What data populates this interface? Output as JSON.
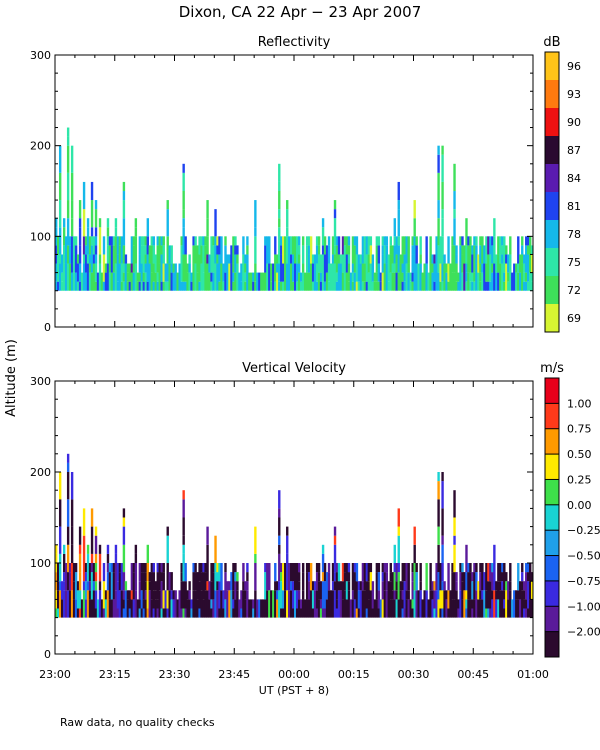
{
  "figure": {
    "title": "Dixon, CA 22 Apr − 23 Apr 2007",
    "ylabel": "Altitude (m)",
    "xlabel": "UT  (PST + 8)",
    "footnote": "Raw data, no quality checks"
  },
  "chart_data": [
    {
      "type": "heatmap",
      "title": "Reflectivity",
      "ylabel": "Altitude (m)",
      "ylim": [
        0,
        300
      ],
      "yticks": [
        0,
        100,
        200,
        300
      ],
      "xlim": [
        0,
        120
      ],
      "xtick_labels": [
        "23:00",
        "23:15",
        "23:30",
        "23:45",
        "00:00",
        "00:15",
        "00:30",
        "00:45",
        "01:00"
      ],
      "colorbar": {
        "units": "dB",
        "labels": [
          "69",
          "72",
          "75",
          "78",
          "81",
          "84",
          "87",
          "90",
          "93",
          "96"
        ],
        "colors": [
          "#d7f532",
          "#3ee05a",
          "#2ee6a8",
          "#15b8ea",
          "#1f43f0",
          "#5a1bb0",
          "#2a0a30",
          "#ee1111",
          "#ff7a10",
          "#ffc419"
        ]
      },
      "data_floor_m": 40,
      "columns": [
        {
          "t": 0,
          "h": 120
        },
        {
          "t": 1,
          "h": 200
        },
        {
          "t": 2,
          "h": 120
        },
        {
          "t": 3,
          "h": 220
        },
        {
          "t": 4,
          "h": 200
        },
        {
          "t": 5,
          "h": 100
        },
        {
          "t": 6,
          "h": 140
        },
        {
          "t": 7,
          "h": 160
        },
        {
          "t": 8,
          "h": 120
        },
        {
          "t": 9,
          "h": 160
        },
        {
          "t": 10,
          "h": 140
        },
        {
          "t": 11,
          "h": 120
        },
        {
          "t": 13,
          "h": 120
        },
        {
          "t": 15,
          "h": 120
        },
        {
          "t": 17,
          "h": 160
        },
        {
          "t": 20,
          "h": 120
        },
        {
          "t": 23,
          "h": 120
        },
        {
          "t": 28,
          "h": 140
        },
        {
          "t": 32,
          "h": 180
        },
        {
          "t": 38,
          "h": 140
        },
        {
          "t": 40,
          "h": 130
        },
        {
          "t": 45,
          "h": 100
        },
        {
          "t": 50,
          "h": 140
        },
        {
          "t": 56,
          "h": 180
        },
        {
          "t": 58,
          "h": 140
        },
        {
          "t": 67,
          "h": 120
        },
        {
          "t": 70,
          "h": 140
        },
        {
          "t": 85,
          "h": 120
        },
        {
          "t": 86,
          "h": 160
        },
        {
          "t": 90,
          "h": 140
        },
        {
          "t": 96,
          "h": 200
        },
        {
          "t": 97,
          "h": 200
        },
        {
          "t": 100,
          "h": 180
        },
        {
          "t": 103,
          "h": 120
        },
        {
          "t": 110,
          "h": 120
        },
        {
          "t": 117,
          "h": 100
        }
      ],
      "dominant_levels": [
        "72",
        "75",
        "78",
        "81"
      ]
    },
    {
      "type": "heatmap",
      "title": "Vertical Velocity",
      "ylabel": "Altitude (m)",
      "ylim": [
        0,
        300
      ],
      "yticks": [
        0,
        100,
        200,
        300
      ],
      "xlim": [
        0,
        120
      ],
      "xtick_labels": [
        "23:00",
        "23:15",
        "23:30",
        "23:45",
        "00:00",
        "00:15",
        "00:30",
        "00:45",
        "01:00"
      ],
      "xlabel": "UT  (PST + 8)",
      "colorbar": {
        "units": "m/s",
        "labels": [
          "−2.00",
          "−1.00",
          "−0.75",
          "−0.50",
          "−0.25",
          "0.00",
          "0.25",
          "0.50",
          "0.75",
          "1.00"
        ],
        "colors": [
          "#2b0a2e",
          "#5a1a9a",
          "#3a2ae0",
          "#1a63f2",
          "#1fa0ea",
          "#19d3d3",
          "#3ee04a",
          "#ffea00",
          "#ff9a00",
          "#ff3a1a",
          "#e8001a"
        ]
      },
      "data_floor_m": 40,
      "dominant_levels": [
        "−2.00",
        "−1.00",
        "−0.75"
      ]
    }
  ]
}
